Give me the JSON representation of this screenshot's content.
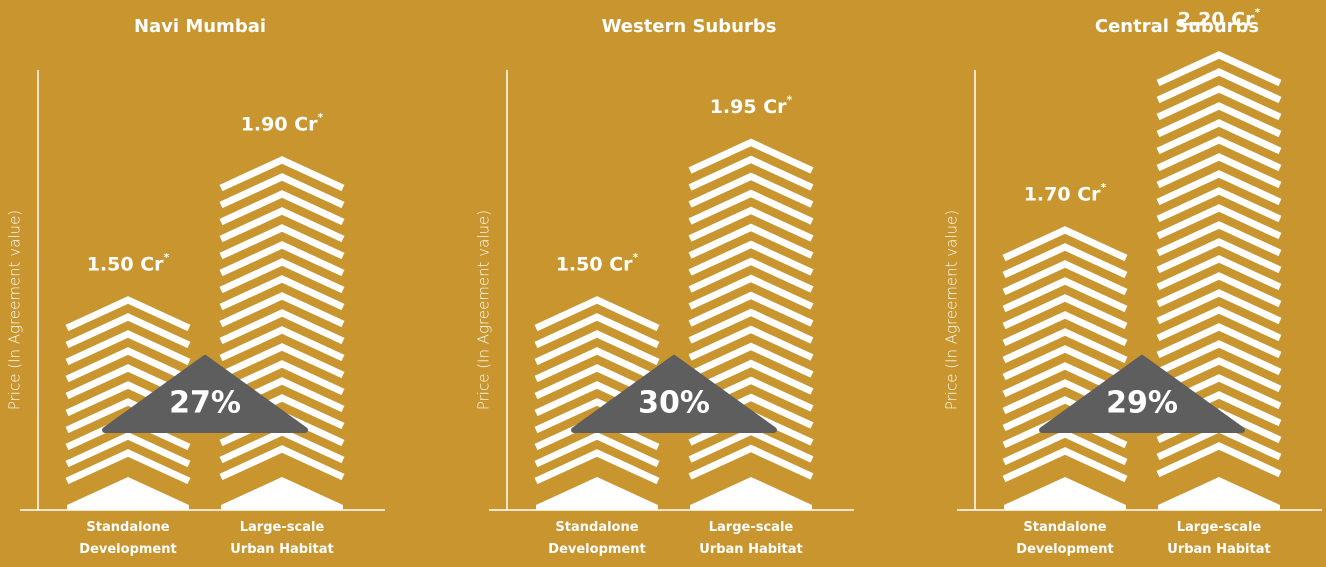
{
  "chart_data": [
    {
      "type": "bar",
      "title": "Navi Mumbai",
      "ylabel": "Price (In Agreement value)",
      "categories": [
        "Standalone Development",
        "Large-scale Urban Habitat"
      ],
      "values": [
        1.5,
        1.9
      ],
      "value_labels": [
        "1.50 Cr*",
        "1.90 Cr*"
      ],
      "annotation": "27%",
      "ylim": [
        0.9,
        2.3
      ],
      "color": "#ffffff"
    },
    {
      "type": "bar",
      "title": "Western Suburbs",
      "ylabel": "Price (In Agreement value)",
      "categories": [
        "Standalone Development",
        "Large-scale Urban Habitat"
      ],
      "values": [
        1.5,
        1.95
      ],
      "value_labels": [
        "1.50 Cr*",
        "1.95 Cr*"
      ],
      "annotation": "30%",
      "ylim": [
        0.9,
        2.3
      ],
      "color": "#ffffff"
    },
    {
      "type": "bar",
      "title": "Central Suburbs",
      "ylabel": "Price (In Agreement value)",
      "categories": [
        "Standalone Development",
        "Large-scale Urban Habitat"
      ],
      "values": [
        1.7,
        2.2
      ],
      "value_labels": [
        "1.70 Cr*",
        "2.20 Cr*"
      ],
      "annotation": "29%",
      "ylim": [
        0.9,
        2.3
      ],
      "color": "#ffffff"
    }
  ]
}
